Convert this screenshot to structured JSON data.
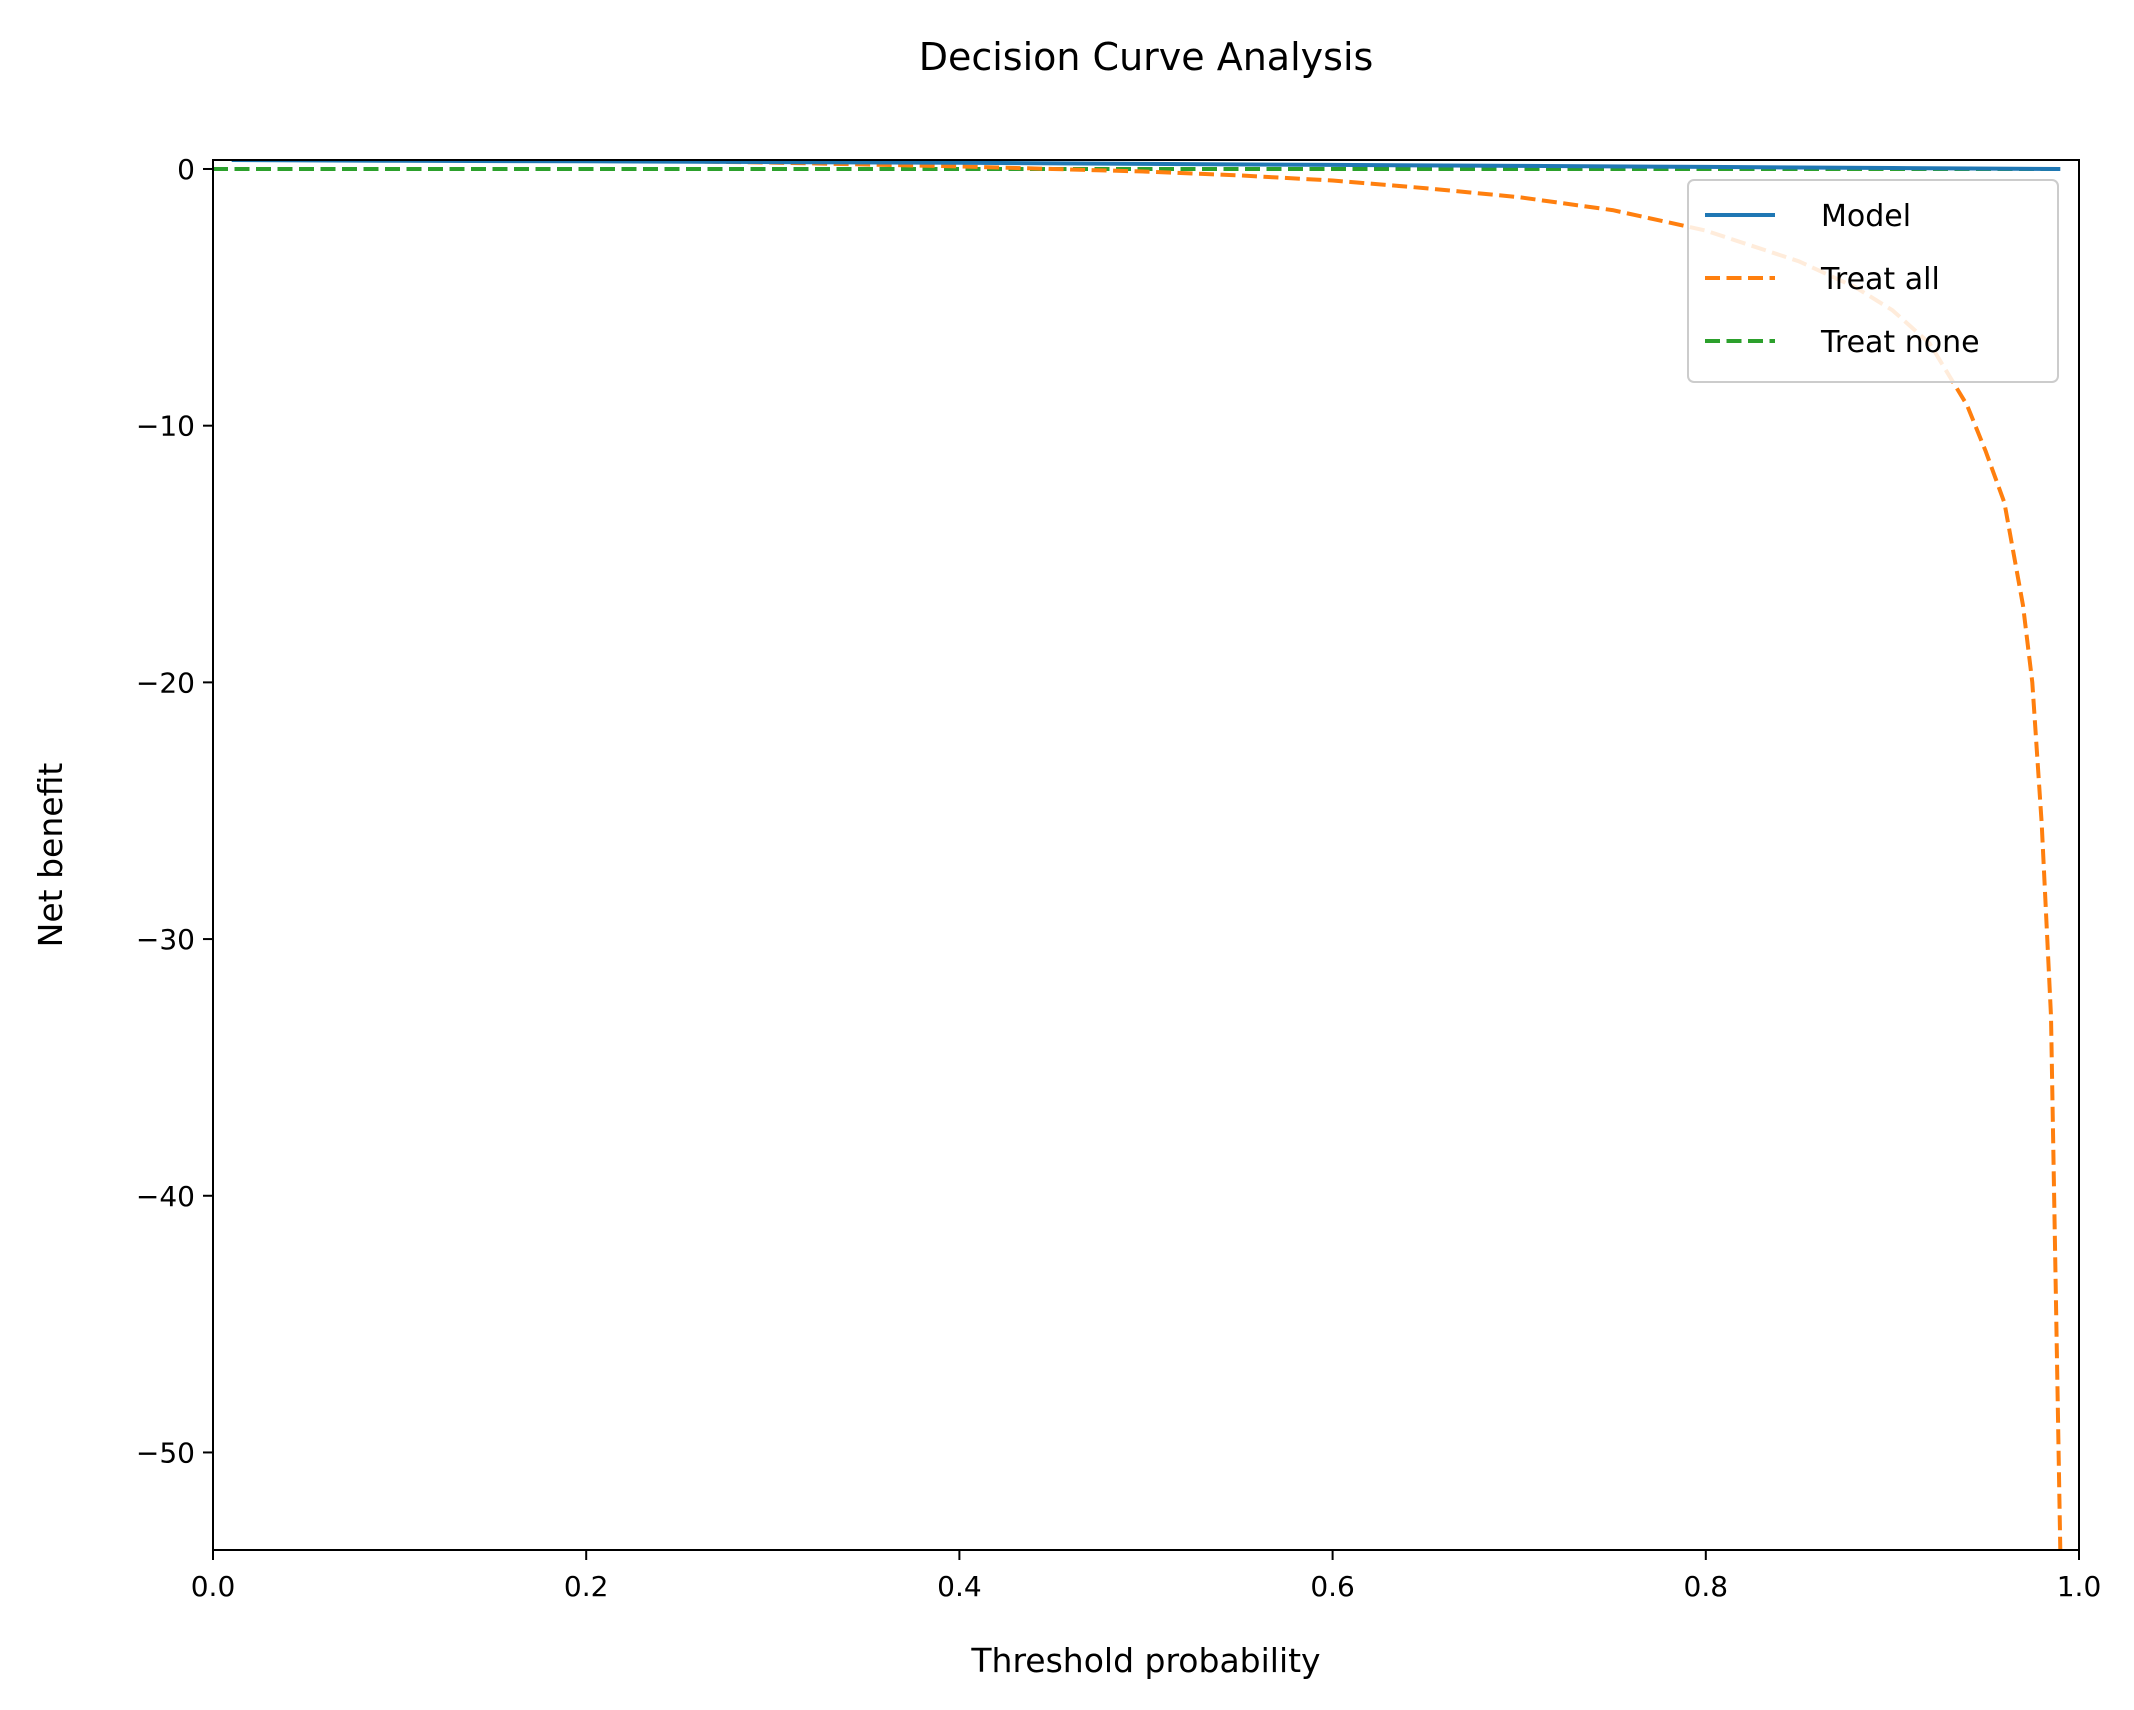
{
  "chart_data": {
    "type": "line",
    "title": "Decision Curve Analysis",
    "xlabel": "Threshold probability",
    "ylabel": "Net benefit",
    "xlim": [
      0.0,
      1.0
    ],
    "ylim": [
      -53.8,
      0.35
    ],
    "x_ticks": [
      0.0,
      0.2,
      0.4,
      0.6,
      0.8,
      1.0
    ],
    "x_tick_labels": [
      "0.0",
      "0.2",
      "0.4",
      "0.6",
      "0.8",
      "1.0"
    ],
    "y_ticks": [
      0,
      -10,
      -20,
      -30,
      -40,
      -50
    ],
    "y_tick_labels": [
      "0",
      "−10",
      "−20",
      "−30",
      "−40",
      "−50"
    ],
    "grid": false,
    "legend_position": "top-right",
    "series": [
      {
        "name": "Model",
        "style": "solid",
        "color": "#1f77b4",
        "x": [
          0.01,
          0.1,
          0.2,
          0.3,
          0.4,
          0.5,
          0.6,
          0.7,
          0.8,
          0.9,
          0.99
        ],
        "y": [
          0.35,
          0.32,
          0.3,
          0.27,
          0.24,
          0.2,
          0.16,
          0.12,
          0.08,
          0.04,
          0.0
        ]
      },
      {
        "name": "Treat all",
        "style": "dashed",
        "color": "#ff7f0e",
        "x": [
          0.01,
          0.1,
          0.2,
          0.3,
          0.4,
          0.45,
          0.5,
          0.55,
          0.6,
          0.65,
          0.7,
          0.75,
          0.8,
          0.85,
          0.88,
          0.9,
          0.92,
          0.94,
          0.95,
          0.96,
          0.97,
          0.975,
          0.98,
          0.985,
          0.99
        ],
        "y": [
          0.46,
          0.41,
          0.35,
          0.25,
          0.1,
          0.0,
          -0.1,
          -0.25,
          -0.45,
          -0.75,
          -1.1,
          -1.6,
          -2.4,
          -3.6,
          -4.6,
          -5.5,
          -6.8,
          -9.2,
          -11.0,
          -13.0,
          -17.0,
          -20.0,
          -25.5,
          -33.0,
          -53.8
        ]
      },
      {
        "name": "Treat none",
        "style": "dashed",
        "color": "#2ca02c",
        "x": [
          0.0,
          0.99
        ],
        "y": [
          0.0,
          0.0
        ]
      }
    ]
  }
}
